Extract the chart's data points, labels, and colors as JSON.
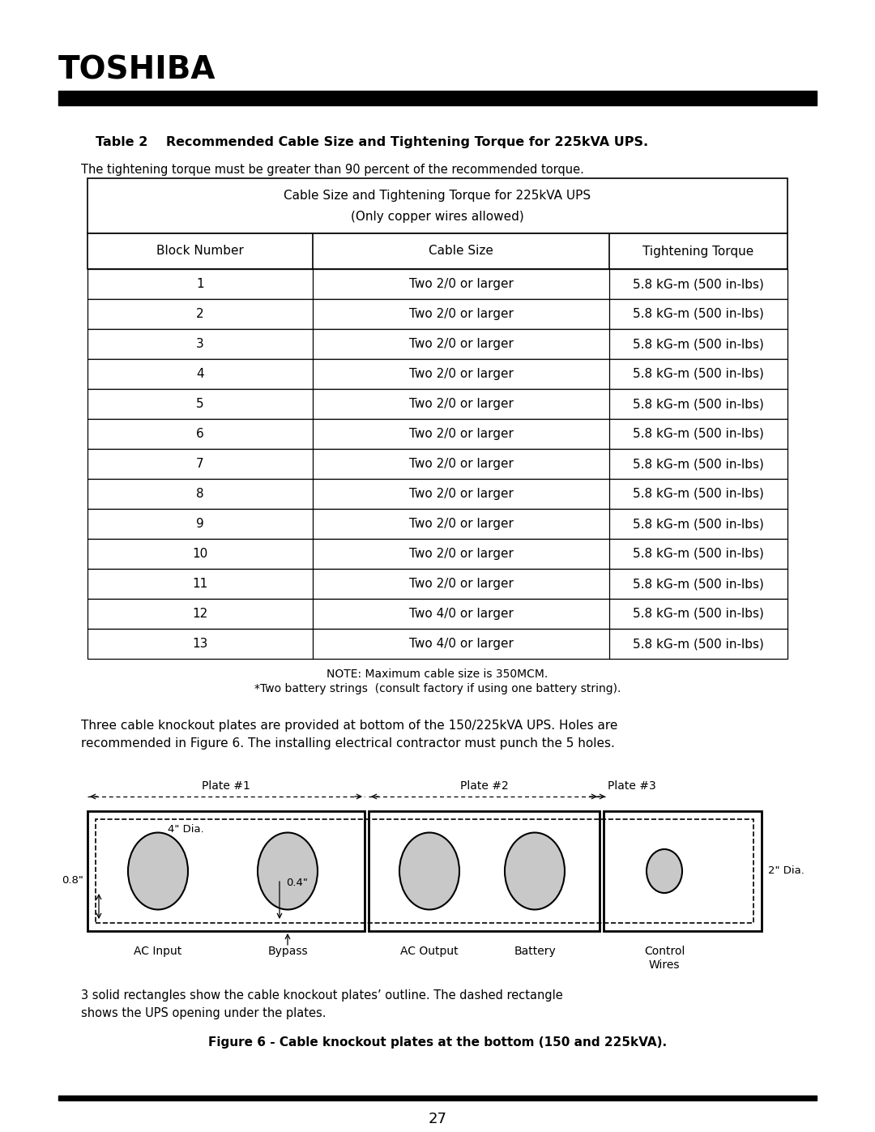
{
  "page_number": "27",
  "toshiba_header": "TOSHIBA",
  "table_title_bold": "Table 2    Recommended Cable Size and Tightening Torque for 225kVA UPS.",
  "table_subtitle": "The tightening torque must be greater than 90 percent of the recommended torque.",
  "table_header_row1": "Cable Size and Tightening Torque for 225kVA UPS",
  "table_header_row2": "(Only copper wires allowed)",
  "col_headers": [
    "Block Number",
    "Cable Size",
    "Tightening Torque"
  ],
  "rows": [
    [
      "1",
      "Two 2/0 or larger",
      "5.8 kG-m (500 in-lbs)"
    ],
    [
      "2",
      "Two 2/0 or larger",
      "5.8 kG-m (500 in-lbs)"
    ],
    [
      "3",
      "Two 2/0 or larger",
      "5.8 kG-m (500 in-lbs)"
    ],
    [
      "4",
      "Two 2/0 or larger",
      "5.8 kG-m (500 in-lbs)"
    ],
    [
      "5",
      "Two 2/0 or larger",
      "5.8 kG-m (500 in-lbs)"
    ],
    [
      "6",
      "Two 2/0 or larger",
      "5.8 kG-m (500 in-lbs)"
    ],
    [
      "7",
      "Two 2/0 or larger",
      "5.8 kG-m (500 in-lbs)"
    ],
    [
      "8",
      "Two 2/0 or larger",
      "5.8 kG-m (500 in-lbs)"
    ],
    [
      "9",
      "Two 2/0 or larger",
      "5.8 kG-m (500 in-lbs)"
    ],
    [
      "10",
      "Two 2/0 or larger",
      "5.8 kG-m (500 in-lbs)"
    ],
    [
      "11",
      "Two 2/0 or larger",
      "5.8 kG-m (500 in-lbs)"
    ],
    [
      "12",
      "Two 4/0 or larger",
      "5.8 kG-m (500 in-lbs)"
    ],
    [
      "13",
      "Two 4/0 or larger",
      "5.8 kG-m (500 in-lbs)"
    ]
  ],
  "note_line1": "NOTE: Maximum cable size is 350MCM.",
  "note_line2": "*Two battery strings  (consult factory if using one battery string).",
  "para_text1": "Three cable knockout plates are provided at bottom of the 150/225kVA UPS. Holes are",
  "para_text2": "recommended in Figure 6. The installing electrical contractor must punch the 5 holes.",
  "fig_caption1": "3 solid rectangles show the cable knockout plates’ outline. The dashed rectangle",
  "fig_caption2": "shows the UPS opening under the plates.",
  "fig_title": "Figure 6 - Cable knockout plates at the bottom (150 and 225kVA).",
  "background_color": "#ffffff",
  "text_color": "#000000",
  "gray_fill": "#c8c8c8"
}
